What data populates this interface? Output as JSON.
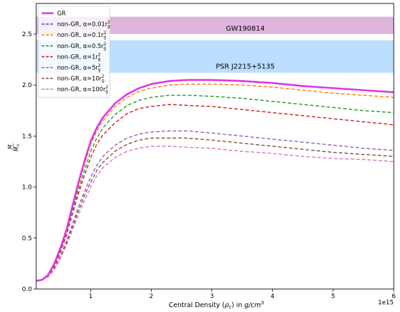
{
  "chart_data": {
    "type": "line",
    "xlabel_prefix": "Central Density (",
    "xlabel_rho": "ρ",
    "xlabel_sub": "c",
    "xlabel_mid": ") in ",
    "xlabel_unit": "g/cm",
    "xlabel_sup": "3",
    "ylabel_top": "M",
    "ylabel_bottom": "M",
    "ylabel_bottom_sub": "⊙",
    "x_offset_label": "1e15",
    "xlim": [
      0.1,
      6.0
    ],
    "ylim": [
      0.0,
      2.8
    ],
    "xticks": [
      1,
      2,
      3,
      4,
      5,
      6
    ],
    "xtick_labels": [
      "1",
      "2",
      "3",
      "4",
      "5",
      "6"
    ],
    "yticks": [
      0.0,
      0.5,
      1.0,
      1.5,
      2.0,
      2.5
    ],
    "ytick_labels": [
      "0.0",
      "0.5",
      "1.0",
      "1.5",
      "2.0",
      "2.5"
    ],
    "bands": [
      {
        "label": "GW190814",
        "ymin": 2.5,
        "ymax": 2.67,
        "color": "#b35cb3",
        "alpha": 0.45,
        "text_color": "#800080",
        "label_x": 3.55,
        "label_y": 2.535
      },
      {
        "label": "PSR J2215+5135",
        "ymin": 2.12,
        "ymax": 2.44,
        "color": "#3ea0ff",
        "alpha": 0.35,
        "text_color": "#1e90ff",
        "label_x": 3.55,
        "label_y": 2.16
      }
    ],
    "series": [
      {
        "name": "GR",
        "color": "#e033e8",
        "dash": "solid",
        "width": 2.6,
        "points": [
          [
            0.1,
            0.08
          ],
          [
            0.2,
            0.09
          ],
          [
            0.3,
            0.14
          ],
          [
            0.4,
            0.25
          ],
          [
            0.5,
            0.4
          ],
          [
            0.6,
            0.58
          ],
          [
            0.7,
            0.82
          ],
          [
            0.8,
            1.05
          ],
          [
            0.9,
            1.26
          ],
          [
            1.0,
            1.45
          ],
          [
            1.1,
            1.58
          ],
          [
            1.2,
            1.68
          ],
          [
            1.4,
            1.82
          ],
          [
            1.6,
            1.91
          ],
          [
            1.8,
            1.97
          ],
          [
            2.0,
            2.01
          ],
          [
            2.3,
            2.04
          ],
          [
            2.6,
            2.05
          ],
          [
            3.0,
            2.05
          ],
          [
            3.5,
            2.04
          ],
          [
            4.0,
            2.02
          ],
          [
            4.5,
            1.99
          ],
          [
            5.0,
            1.97
          ],
          [
            5.5,
            1.95
          ],
          [
            6.0,
            1.93
          ]
        ]
      },
      {
        "name": "non-GR, α=0.01r",
        "sup": "2",
        "sub": "g",
        "color": "#1f5fa8",
        "dash": "5,3",
        "width": 1.5,
        "points": [
          [
            0.1,
            0.08
          ],
          [
            0.2,
            0.09
          ],
          [
            0.3,
            0.14
          ],
          [
            0.4,
            0.25
          ],
          [
            0.5,
            0.4
          ],
          [
            0.6,
            0.58
          ],
          [
            0.7,
            0.82
          ],
          [
            0.8,
            1.05
          ],
          [
            0.9,
            1.26
          ],
          [
            1.0,
            1.45
          ],
          [
            1.1,
            1.58
          ],
          [
            1.2,
            1.68
          ],
          [
            1.4,
            1.82
          ],
          [
            1.6,
            1.91
          ],
          [
            1.8,
            1.97
          ],
          [
            2.0,
            2.01
          ],
          [
            2.3,
            2.04
          ],
          [
            2.6,
            2.05
          ],
          [
            3.0,
            2.05
          ],
          [
            3.5,
            2.04
          ],
          [
            4.0,
            2.02
          ],
          [
            4.5,
            1.99
          ],
          [
            5.0,
            1.97
          ],
          [
            5.5,
            1.95
          ],
          [
            6.0,
            1.93
          ]
        ]
      },
      {
        "name": "non-GR, α=0.1r",
        "sup": "2",
        "sub": "g",
        "color": "#ff7f0e",
        "dash": "5,3",
        "width": 1.5,
        "points": [
          [
            0.1,
            0.08
          ],
          [
            0.2,
            0.09
          ],
          [
            0.3,
            0.14
          ],
          [
            0.4,
            0.24
          ],
          [
            0.5,
            0.39
          ],
          [
            0.6,
            0.57
          ],
          [
            0.7,
            0.8
          ],
          [
            0.8,
            1.02
          ],
          [
            0.9,
            1.23
          ],
          [
            1.0,
            1.42
          ],
          [
            1.1,
            1.55
          ],
          [
            1.2,
            1.65
          ],
          [
            1.4,
            1.79
          ],
          [
            1.6,
            1.88
          ],
          [
            1.8,
            1.94
          ],
          [
            2.0,
            1.97
          ],
          [
            2.3,
            2.0
          ],
          [
            2.6,
            2.01
          ],
          [
            3.0,
            2.01
          ],
          [
            3.5,
            2.0
          ],
          [
            4.0,
            1.98
          ],
          [
            4.5,
            1.95
          ],
          [
            5.0,
            1.92
          ],
          [
            5.5,
            1.9
          ],
          [
            6.0,
            1.88
          ]
        ]
      },
      {
        "name": "non-GR, α=0.5r",
        "sup": "2",
        "sub": "g",
        "color": "#2ca02c",
        "dash": "5,3",
        "width": 1.5,
        "points": [
          [
            0.1,
            0.08
          ],
          [
            0.2,
            0.09
          ],
          [
            0.3,
            0.13
          ],
          [
            0.4,
            0.23
          ],
          [
            0.5,
            0.37
          ],
          [
            0.6,
            0.55
          ],
          [
            0.7,
            0.77
          ],
          [
            0.8,
            0.98
          ],
          [
            0.9,
            1.17
          ],
          [
            1.0,
            1.35
          ],
          [
            1.1,
            1.48
          ],
          [
            1.2,
            1.58
          ],
          [
            1.4,
            1.71
          ],
          [
            1.6,
            1.8
          ],
          [
            1.8,
            1.85
          ],
          [
            2.0,
            1.88
          ],
          [
            2.3,
            1.9
          ],
          [
            2.6,
            1.9
          ],
          [
            3.0,
            1.89
          ],
          [
            3.5,
            1.87
          ],
          [
            4.0,
            1.84
          ],
          [
            4.5,
            1.81
          ],
          [
            5.0,
            1.78
          ],
          [
            5.5,
            1.75
          ],
          [
            6.0,
            1.73
          ]
        ]
      },
      {
        "name": "non-GR, α=1r",
        "sup": "2",
        "sub": "g",
        "color": "#d62728",
        "dash": "5,3",
        "width": 1.5,
        "points": [
          [
            0.1,
            0.08
          ],
          [
            0.2,
            0.09
          ],
          [
            0.3,
            0.13
          ],
          [
            0.4,
            0.22
          ],
          [
            0.5,
            0.36
          ],
          [
            0.6,
            0.53
          ],
          [
            0.7,
            0.74
          ],
          [
            0.8,
            0.94
          ],
          [
            0.9,
            1.12
          ],
          [
            1.0,
            1.29
          ],
          [
            1.1,
            1.42
          ],
          [
            1.2,
            1.51
          ],
          [
            1.4,
            1.63
          ],
          [
            1.6,
            1.72
          ],
          [
            1.8,
            1.77
          ],
          [
            2.0,
            1.79
          ],
          [
            2.3,
            1.81
          ],
          [
            2.6,
            1.8
          ],
          [
            3.0,
            1.79
          ],
          [
            3.5,
            1.76
          ],
          [
            4.0,
            1.73
          ],
          [
            4.5,
            1.7
          ],
          [
            5.0,
            1.67
          ],
          [
            5.5,
            1.64
          ],
          [
            6.0,
            1.61
          ]
        ]
      },
      {
        "name": "non-GR, α=5r",
        "sup": "2",
        "sub": "g",
        "color": "#9467bd",
        "dash": "5,3",
        "width": 1.5,
        "points": [
          [
            0.1,
            0.08
          ],
          [
            0.2,
            0.09
          ],
          [
            0.3,
            0.12
          ],
          [
            0.4,
            0.2
          ],
          [
            0.5,
            0.32
          ],
          [
            0.6,
            0.47
          ],
          [
            0.7,
            0.64
          ],
          [
            0.8,
            0.81
          ],
          [
            0.9,
            0.96
          ],
          [
            1.0,
            1.1
          ],
          [
            1.1,
            1.21
          ],
          [
            1.2,
            1.3
          ],
          [
            1.4,
            1.41
          ],
          [
            1.6,
            1.48
          ],
          [
            1.8,
            1.52
          ],
          [
            2.0,
            1.54
          ],
          [
            2.3,
            1.55
          ],
          [
            2.6,
            1.55
          ],
          [
            3.0,
            1.53
          ],
          [
            3.5,
            1.5
          ],
          [
            4.0,
            1.47
          ],
          [
            4.5,
            1.44
          ],
          [
            5.0,
            1.41
          ],
          [
            5.5,
            1.38
          ],
          [
            6.0,
            1.36
          ]
        ]
      },
      {
        "name": "non-GR, α=10r",
        "sup": "2",
        "sub": "g",
        "color": "#8c564b",
        "dash": "5,3",
        "width": 1.5,
        "points": [
          [
            0.1,
            0.08
          ],
          [
            0.2,
            0.09
          ],
          [
            0.3,
            0.12
          ],
          [
            0.4,
            0.19
          ],
          [
            0.5,
            0.31
          ],
          [
            0.6,
            0.45
          ],
          [
            0.7,
            0.61
          ],
          [
            0.8,
            0.77
          ],
          [
            0.9,
            0.92
          ],
          [
            1.0,
            1.05
          ],
          [
            1.1,
            1.16
          ],
          [
            1.2,
            1.24
          ],
          [
            1.4,
            1.35
          ],
          [
            1.6,
            1.42
          ],
          [
            1.8,
            1.46
          ],
          [
            2.0,
            1.48
          ],
          [
            2.3,
            1.48
          ],
          [
            2.6,
            1.48
          ],
          [
            3.0,
            1.46
          ],
          [
            3.5,
            1.43
          ],
          [
            4.0,
            1.4
          ],
          [
            4.5,
            1.37
          ],
          [
            5.0,
            1.34
          ],
          [
            5.5,
            1.32
          ],
          [
            6.0,
            1.3
          ]
        ]
      },
      {
        "name": "non-GR, α=100r",
        "sup": "2",
        "sub": "g",
        "color": "#e377c2",
        "dash": "5,3",
        "width": 1.5,
        "points": [
          [
            0.1,
            0.08
          ],
          [
            0.2,
            0.09
          ],
          [
            0.3,
            0.12
          ],
          [
            0.4,
            0.19
          ],
          [
            0.5,
            0.3
          ],
          [
            0.6,
            0.43
          ],
          [
            0.7,
            0.58
          ],
          [
            0.8,
            0.73
          ],
          [
            0.9,
            0.87
          ],
          [
            1.0,
            1.0
          ],
          [
            1.1,
            1.11
          ],
          [
            1.2,
            1.19
          ],
          [
            1.4,
            1.29
          ],
          [
            1.6,
            1.35
          ],
          [
            1.8,
            1.38
          ],
          [
            2.0,
            1.4
          ],
          [
            2.3,
            1.4
          ],
          [
            2.6,
            1.39
          ],
          [
            3.0,
            1.38
          ],
          [
            3.5,
            1.35
          ],
          [
            4.0,
            1.33
          ],
          [
            4.5,
            1.3
          ],
          [
            5.0,
            1.28
          ],
          [
            5.5,
            1.27
          ],
          [
            6.0,
            1.25
          ]
        ]
      }
    ],
    "legend_position": "upper-left",
    "grid": false
  }
}
